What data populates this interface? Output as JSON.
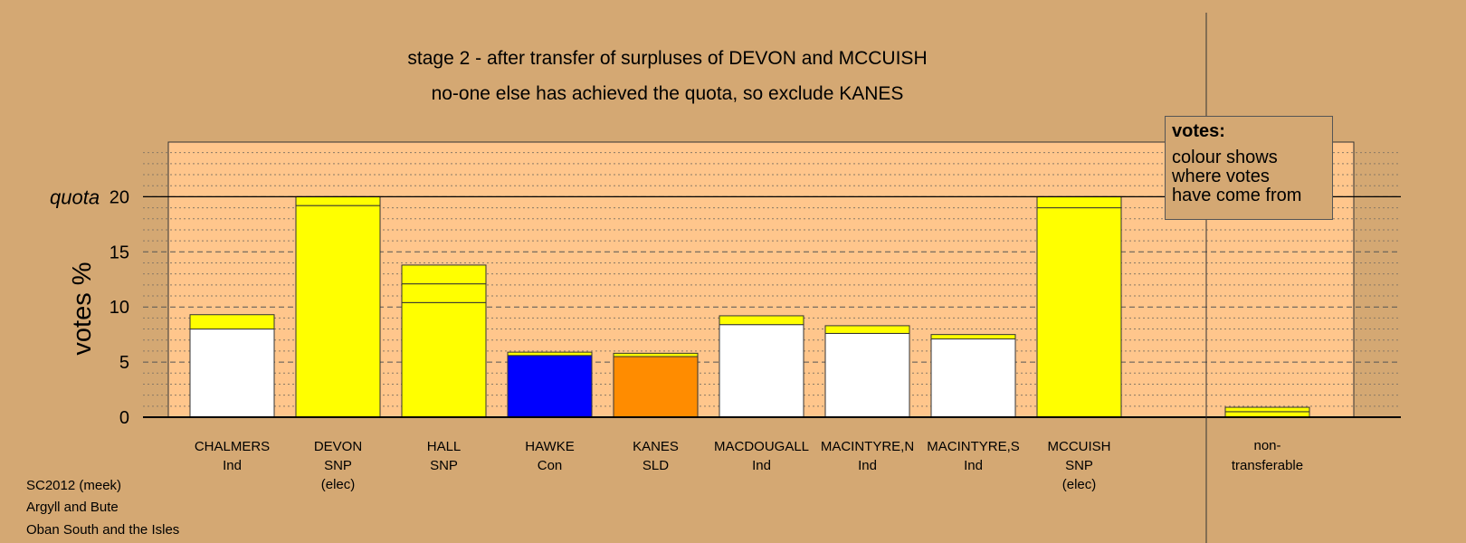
{
  "header": {
    "title": "stage 2 - after transfer of surpluses of DEVON and MCCUISH",
    "subtitle": "no-one else has achieved the quota, so exclude KANES"
  },
  "legend": {
    "title": "votes:",
    "line1": "colour shows",
    "line2": "where votes",
    "line3": "have come from"
  },
  "footer": {
    "line1": "SC2012 (meek)",
    "line2": "Argyll and Bute",
    "line3": "Oban South and the Isles"
  },
  "colors": {
    "background": "#d4a873",
    "plot_area": "#ffc68c",
    "transfer": "#ffff00",
    "independent": "#ffffff",
    "snp": "#ffff00",
    "con": "#0000ff",
    "sld": "#ff8c00"
  },
  "chart_data": {
    "type": "bar",
    "stacked": true,
    "ylabel": "votes %",
    "quota_label": "quota",
    "quota": 20,
    "ylim": [
      0,
      25
    ],
    "yticks": [
      0,
      5,
      10,
      15,
      20
    ],
    "grid": true,
    "candidates": [
      {
        "name": "CHALMERS",
        "party": "Ind",
        "note": "",
        "segments": [
          {
            "value": 8.0,
            "color": "#ffffff"
          },
          {
            "value": 1.3,
            "color": "#ffff00"
          }
        ]
      },
      {
        "name": "DEVON",
        "party": "SNP",
        "note": "(elec)",
        "segments": [
          {
            "value": 19.2,
            "color": "#ffff00"
          },
          {
            "value": 0.8,
            "color": "#ffff00"
          }
        ]
      },
      {
        "name": "HALL",
        "party": "SNP",
        "note": "",
        "segments": [
          {
            "value": 10.4,
            "color": "#ffff00"
          },
          {
            "value": 1.7,
            "color": "#ffff00"
          },
          {
            "value": 1.7,
            "color": "#ffff00"
          }
        ]
      },
      {
        "name": "HAWKE",
        "party": "Con",
        "note": "",
        "segments": [
          {
            "value": 5.6,
            "color": "#0000ff"
          },
          {
            "value": 0.3,
            "color": "#ffff00"
          }
        ]
      },
      {
        "name": "KANES",
        "party": "SLD",
        "note": "",
        "segments": [
          {
            "value": 5.5,
            "color": "#ff8c00"
          },
          {
            "value": 0.3,
            "color": "#ffff00"
          }
        ]
      },
      {
        "name": "MACDOUGALL",
        "party": "Ind",
        "note": "",
        "segments": [
          {
            "value": 8.4,
            "color": "#ffffff"
          },
          {
            "value": 0.8,
            "color": "#ffff00"
          }
        ]
      },
      {
        "name": "MACINTYRE,N",
        "party": "Ind",
        "note": "",
        "segments": [
          {
            "value": 7.6,
            "color": "#ffffff"
          },
          {
            "value": 0.7,
            "color": "#ffff00"
          }
        ]
      },
      {
        "name": "MACINTYRE,S",
        "party": "Ind",
        "note": "",
        "segments": [
          {
            "value": 7.1,
            "color": "#ffffff"
          },
          {
            "value": 0.4,
            "color": "#ffff00"
          }
        ]
      },
      {
        "name": "MCCUISH",
        "party": "SNP",
        "note": "(elec)",
        "segments": [
          {
            "value": 19.0,
            "color": "#ffff00"
          },
          {
            "value": 1.0,
            "color": "#ffff00"
          }
        ]
      }
    ],
    "nontransferable": {
      "label1": "non-",
      "label2": "transferable",
      "segments": [
        {
          "value": 0.5,
          "color": "#ffff00"
        },
        {
          "value": 0.4,
          "color": "#ffff00"
        }
      ]
    }
  }
}
